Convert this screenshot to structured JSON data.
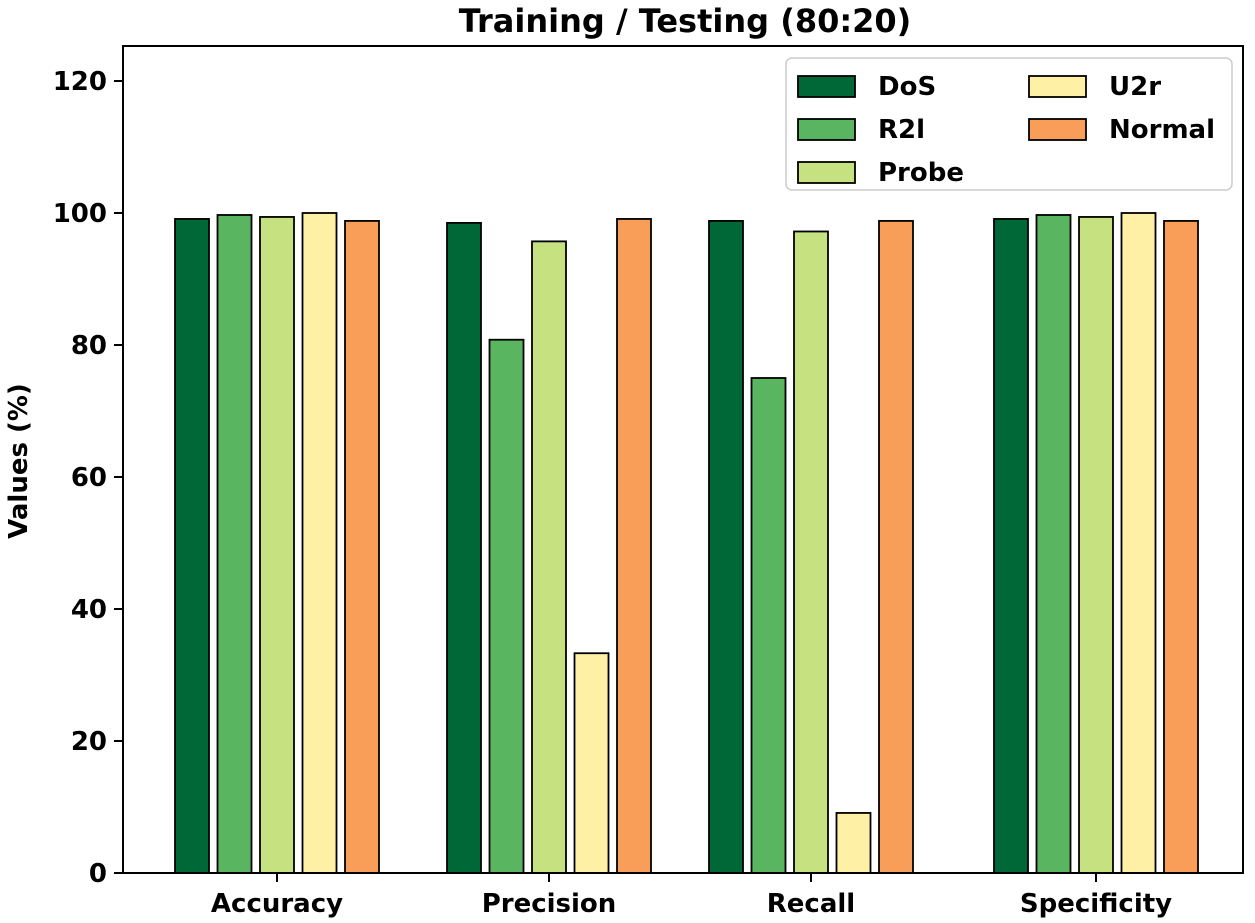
{
  "chart_data": {
    "type": "bar",
    "title": "Training / Testing (80:20)",
    "xlabel": "",
    "ylabel": "Values (%)",
    "ylim": [
      0,
      120
    ],
    "yticks": [
      0,
      20,
      40,
      60,
      80,
      100,
      120
    ],
    "categories": [
      "Accuracy",
      "Precision",
      "Recall",
      "Specificity"
    ],
    "series": [
      {
        "name": "DoS",
        "color": "#006837",
        "values": [
          99.1,
          98.5,
          98.8,
          99.1
        ]
      },
      {
        "name": "R2l",
        "color": "#5ab560",
        "values": [
          99.7,
          80.8,
          75.0,
          99.7
        ]
      },
      {
        "name": "Probe",
        "color": "#c6e17f",
        "values": [
          99.4,
          95.7,
          97.2,
          99.4
        ]
      },
      {
        "name": "U2r",
        "color": "#fef0a5",
        "values": [
          100.0,
          33.3,
          9.1,
          100.0
        ]
      },
      {
        "name": "Normal",
        "color": "#f99e59",
        "values": [
          98.8,
          99.1,
          98.8,
          98.8
        ]
      }
    ],
    "legend": {
      "placement": "top-right",
      "columns": [
        [
          "DoS",
          "R2l",
          "Probe"
        ],
        [
          "U2r",
          "Normal"
        ]
      ]
    }
  }
}
